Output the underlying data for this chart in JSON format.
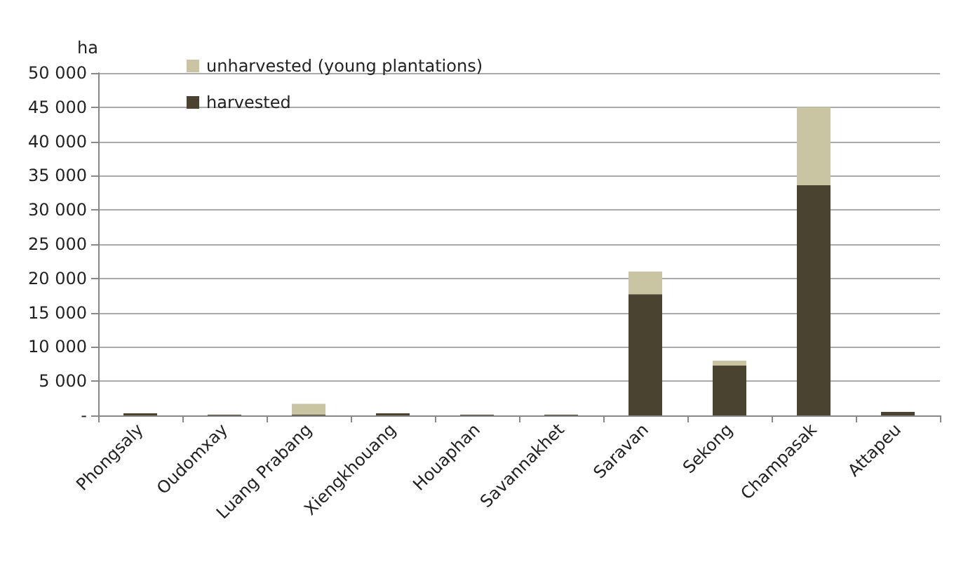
{
  "chart_data": {
    "type": "bar",
    "stacked": true,
    "ylabel": "ha",
    "categories": [
      "Phongsaly",
      "Oudomxay",
      "Luang Prabang",
      "Xiengkhouang",
      "Houaphan",
      "Savannakhet",
      "Saravan",
      "Sekong",
      "Champasak",
      "Attapeu"
    ],
    "series": [
      {
        "name": "harvested",
        "color": "#4a4330",
        "values": [
          300,
          100,
          100,
          300,
          100,
          100,
          17700,
          7300,
          33600,
          500
        ]
      },
      {
        "name": "unharvested (young plantations)",
        "color": "#c9c5a3",
        "values": [
          0,
          0,
          1600,
          0,
          0,
          0,
          3300,
          700,
          11400,
          0
        ]
      }
    ],
    "ylim": [
      0,
      50000
    ],
    "yticks": [
      {
        "value": 0,
        "label": "-"
      },
      {
        "value": 5000,
        "label": "5 000"
      },
      {
        "value": 10000,
        "label": "10 000"
      },
      {
        "value": 15000,
        "label": "15 000"
      },
      {
        "value": 20000,
        "label": "20 000"
      },
      {
        "value": 25000,
        "label": "25 000"
      },
      {
        "value": 30000,
        "label": "30 000"
      },
      {
        "value": 35000,
        "label": "35 000"
      },
      {
        "value": 40000,
        "label": "40 000"
      },
      {
        "value": 45000,
        "label": "45 000"
      },
      {
        "value": 50000,
        "label": "50 000"
      }
    ],
    "grid": "y",
    "legend": "top left"
  }
}
